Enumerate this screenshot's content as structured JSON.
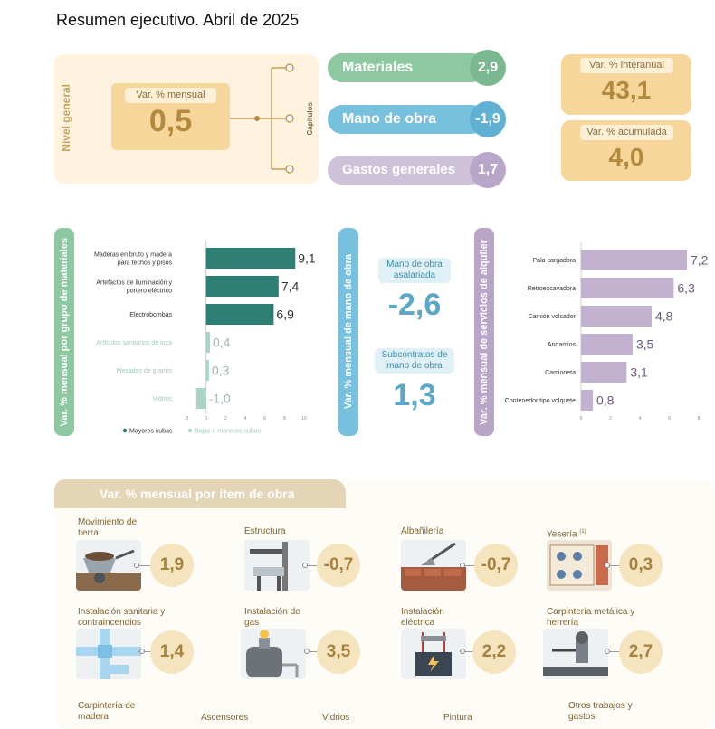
{
  "title": "Resumen ejecutivo. Abril de 2025",
  "nivel_general": {
    "side_label": "Nivel general",
    "mensual_label": "Var. % mensual",
    "mensual_value": "0,5",
    "capitulos_label": "Capítulos",
    "interanual_label": "Var. % interanual",
    "interanual_value": "43,1",
    "acumulada_label": "Var. % acumulada",
    "acumulada_value": "4,0"
  },
  "capitulos": [
    {
      "label": "Materiales",
      "value": "2,9",
      "color": "#8dc8a1",
      "circle": "#7ab98f"
    },
    {
      "label": "Mano de obra",
      "value": "-1,9",
      "color": "#78c1de",
      "circle": "#5fb0d2"
    },
    {
      "label": "Gastos generales",
      "value": "1,7",
      "color": "#cdc2d9",
      "circle": "#b8a7c8"
    }
  ],
  "chart_data": [
    {
      "type": "bar",
      "orientation": "horizontal",
      "title": "Var. % mensual por grupo de materiales",
      "categories": [
        "Maderas en bruto y madera para techos y pisos",
        "Artefactos de iluminación y portero eléctrico",
        "Electrobombas",
        "Artículos sanitarios de loza",
        "Mesadas de granito",
        "Vidrios"
      ],
      "values": [
        9.1,
        7.4,
        6.9,
        0.4,
        0.3,
        -1.0
      ],
      "value_labels": [
        "9,1",
        "7,4",
        "6,9",
        "0,4",
        "0,3",
        "-1,0"
      ],
      "xlim": [
        -2,
        10
      ],
      "xticks": [
        "-2",
        "0",
        "2",
        "4",
        "6",
        "8",
        "10"
      ],
      "series_groups": [
        "Mayores subas",
        "Bajas o menores subas"
      ],
      "colors": {
        "major": "#2d7f73",
        "minor": "#a9d5c9",
        "side": "#8dc8a1"
      }
    },
    {
      "type": "bar",
      "orientation": "horizontal",
      "title": "Var. % mensual de servicios de alquiler",
      "categories": [
        "Pala cargadora",
        "Retroexcavadora",
        "Camión volcador",
        "Andamios",
        "Camioneta",
        "Contenedor tipo volquete"
      ],
      "values": [
        7.2,
        6.3,
        4.8,
        3.5,
        3.1,
        0.8
      ],
      "value_labels": [
        "7,2",
        "6,3",
        "4,8",
        "3,5",
        "3,1",
        "0,8"
      ],
      "xlim": [
        0,
        8
      ],
      "xticks": [
        "0",
        "2",
        "4",
        "6",
        "8"
      ],
      "colors": {
        "bar": "#c3b2cf",
        "side": "#b9a5c8"
      }
    }
  ],
  "mano_de_obra": {
    "side_label": "Var. % mensual de mano de obra",
    "asalariada_label": "Mano de obra asalariada",
    "asalariada_value": "-2,6",
    "subcontratos_label": "Subcontratos de mano de obra",
    "subcontratos_value": "1,3"
  },
  "items_section_title": "Var. % mensual por ítem de obra",
  "items": [
    {
      "name": "Movimiento de tierra",
      "value": "1,9",
      "icon": "wheelbarrow-icon"
    },
    {
      "name": "Estructura",
      "value": "-0,7",
      "icon": "structure-icon"
    },
    {
      "name": "Albañilería",
      "value": "-0,7",
      "icon": "trowel-icon"
    },
    {
      "name": "Yesería",
      "note": "(1)",
      "value": "0,3",
      "icon": "plaster-icon"
    },
    {
      "name": "Instalación sanitaria y contraincendios",
      "value": "1,4",
      "icon": "pipes-icon"
    },
    {
      "name": "Instalación de gas",
      "value": "3,5",
      "icon": "gas-tank-icon"
    },
    {
      "name": "Instalación eléctrica",
      "value": "2,2",
      "icon": "electric-icon"
    },
    {
      "name": "Carpintería metálica y herrería",
      "value": "2,7",
      "icon": "welding-icon"
    }
  ],
  "items_bottom_row": [
    "Carpintería de madera",
    "Ascensores",
    "Vidrios",
    "Pintura",
    "Otros trabajos y gastos"
  ]
}
